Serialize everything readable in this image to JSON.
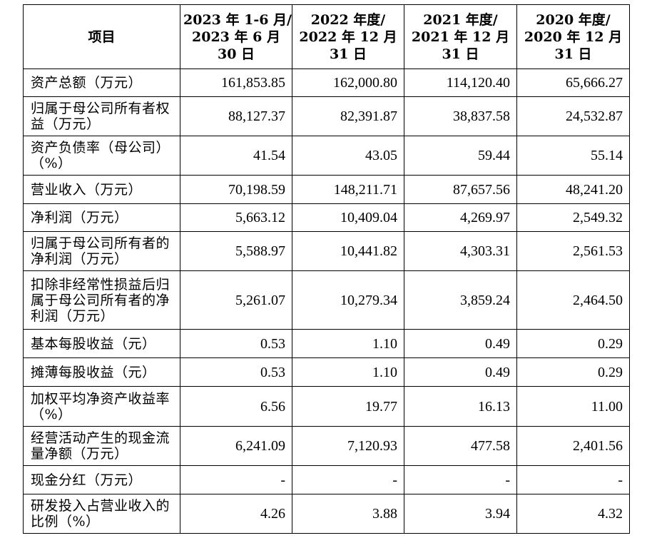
{
  "table": {
    "header": {
      "item": "项目",
      "periods": [
        [
          "2023 年 1-6 月/",
          "2023 年 6 月",
          "30 日"
        ],
        [
          "2022 年度/",
          "2022 年 12 月",
          "31 日"
        ],
        [
          "2021 年度/",
          "2021 年 12 月",
          "31 日"
        ],
        [
          "2020 年度/",
          "2020 年 12 月",
          "31 日"
        ]
      ]
    },
    "rows": [
      {
        "label": "资产总额（万元）",
        "values": [
          "161,853.85",
          "162,000.80",
          "114,120.40",
          "65,666.27"
        ]
      },
      {
        "label": "归属于母公司所有者权益（万元）",
        "values": [
          "88,127.37",
          "82,391.87",
          "38,837.58",
          "24,532.87"
        ]
      },
      {
        "label": "资产负债率（母公司）（%）",
        "values": [
          "41.54",
          "43.05",
          "59.44",
          "55.14"
        ]
      },
      {
        "label": "营业收入（万元）",
        "values": [
          "70,198.59",
          "148,211.71",
          "87,657.56",
          "48,241.20"
        ]
      },
      {
        "label": "净利润（万元）",
        "values": [
          "5,663.12",
          "10,409.04",
          "4,269.97",
          "2,549.32"
        ]
      },
      {
        "label": "归属于母公司所有者的净利润（万元）",
        "values": [
          "5,588.97",
          "10,441.82",
          "4,303.31",
          "2,561.53"
        ]
      },
      {
        "label": "扣除非经常性损益后归属于母公司所有者的净利润（万元）",
        "values": [
          "5,261.07",
          "10,279.34",
          "3,859.24",
          "2,464.50"
        ]
      },
      {
        "label": "基本每股收益（元）",
        "values": [
          "0.53",
          "1.10",
          "0.49",
          "0.29"
        ]
      },
      {
        "label": "摊薄每股收益（元）",
        "values": [
          "0.53",
          "1.10",
          "0.49",
          "0.29"
        ]
      },
      {
        "label": "加权平均净资产收益率（%）",
        "values": [
          "6.56",
          "19.77",
          "16.13",
          "11.00"
        ]
      },
      {
        "label": "经营活动产生的现金流量净额（万元）",
        "values": [
          "6,241.09",
          "7,120.93",
          "477.58",
          "2,401.56"
        ]
      },
      {
        "label": "现金分红（万元）",
        "values": [
          "-",
          "-",
          "-",
          "-"
        ]
      },
      {
        "label": "研发投入占营业收入的比例（%）",
        "values": [
          "4.26",
          "3.88",
          "3.94",
          "4.32"
        ]
      }
    ]
  }
}
